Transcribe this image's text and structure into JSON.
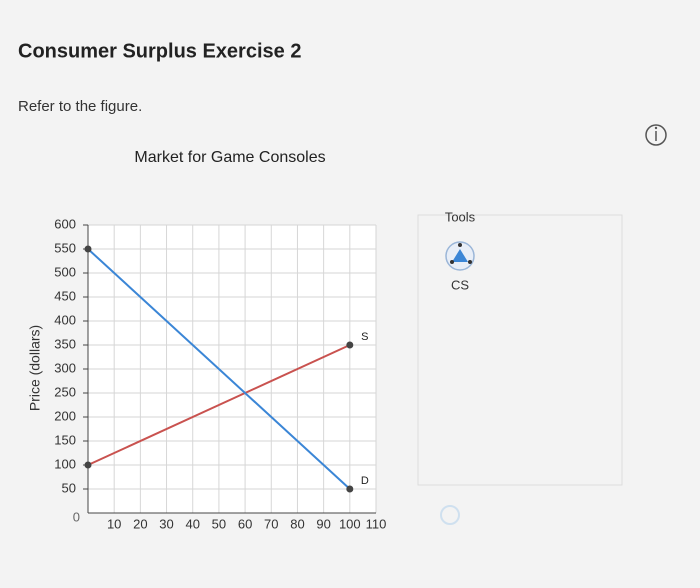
{
  "header": {
    "title": "Consumer Surplus Exercise 2"
  },
  "instruction": "Refer to the figure.",
  "chart_data": {
    "type": "line",
    "title": "Market for Game Consoles",
    "y_label": "Price (dollars)",
    "x": [
      0,
      100
    ],
    "series": [
      {
        "name": "S",
        "color": "#c9524f",
        "values": [
          100,
          350
        ]
      },
      {
        "name": "D",
        "color": "#3b86d6",
        "values": [
          550,
          50
        ]
      }
    ],
    "xlim": [
      0,
      110
    ],
    "ylim": [
      0,
      600
    ],
    "xticks": [
      10,
      20,
      30,
      40,
      50,
      60,
      70,
      80,
      90,
      100,
      110
    ],
    "yticks": [
      0,
      50,
      100,
      150,
      200,
      250,
      300,
      350,
      400,
      450,
      500,
      550,
      600
    ],
    "grid": true
  },
  "tools": {
    "title": "Tools",
    "items": [
      "CS"
    ]
  }
}
